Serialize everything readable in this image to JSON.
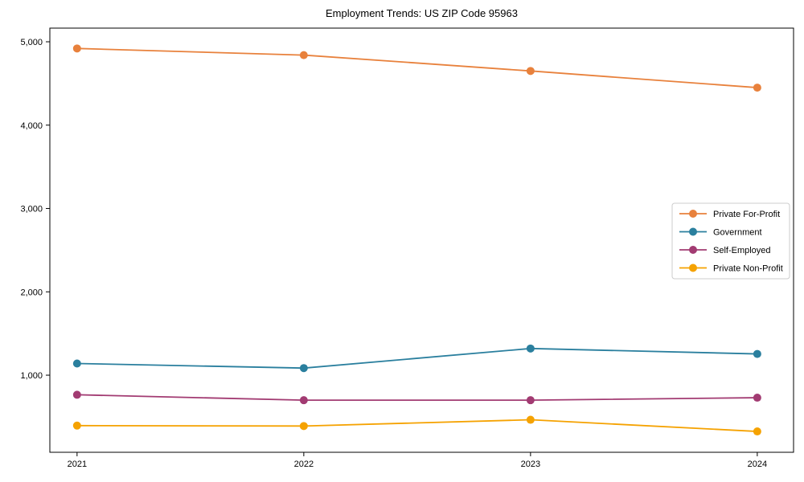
{
  "chart_data": {
    "type": "line",
    "title": "Employment Trends: US ZIP Code 95963",
    "xlabel": "",
    "ylabel": "",
    "x": [
      2021,
      2022,
      2023,
      2024
    ],
    "x_tick_labels": [
      "2021",
      "2022",
      "2023",
      "2024"
    ],
    "y_tick_values": [
      1000,
      2000,
      3000,
      4000,
      5000
    ],
    "y_tick_labels": [
      "1,000",
      "2,000",
      "3,000",
      "4,000",
      "5,000"
    ],
    "xlim": [
      2020.88,
      2024.16
    ],
    "ylim": [
      75,
      5164
    ],
    "grid": false,
    "legend_position": "center-right",
    "marker": "circle",
    "axis_color": "#000000",
    "legend_border_color": "#cccccc",
    "series": [
      {
        "name": "Private For-Profit",
        "color": "#E8813C",
        "values": [
          4920,
          4840,
          4650,
          4450
        ]
      },
      {
        "name": "Government",
        "color": "#2A7F9E",
        "values": [
          1140,
          1085,
          1320,
          1255
        ]
      },
      {
        "name": "Self-Employed",
        "color": "#A23B72",
        "values": [
          765,
          700,
          700,
          730
        ]
      },
      {
        "name": "Private Non-Profit",
        "color": "#F5A201",
        "values": [
          395,
          390,
          465,
          325
        ]
      }
    ]
  }
}
